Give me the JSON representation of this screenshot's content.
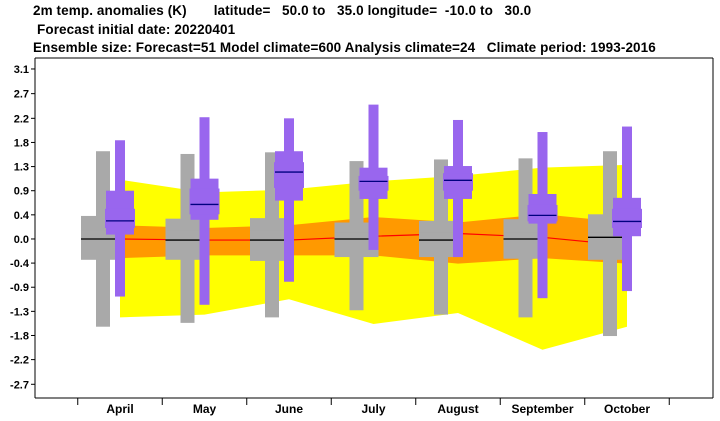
{
  "header": {
    "line1": "2m temp. anomalies (K)       latitude=   50.0 to   35.0 longitude=  -10.0 to   30.0",
    "line2": "Forecast initial date: 20220401",
    "line3": "Ensemble size: Forecast=51 Model climate=600 Analysis climate=24   Climate period: 1993-2016"
  },
  "colors": {
    "climate_outer": "#ffff00",
    "climate_inner": "#ff9900",
    "climate_median": "#ff0000",
    "model_box": "#a9a9a9",
    "forecast_box": "#9966ee",
    "forecast_median": "#000080",
    "model_median": "#000000"
  },
  "chart_data": {
    "type": "box",
    "title": "",
    "xlabel": "",
    "ylabel": "",
    "ylim": [
      -2.9,
      3.3
    ],
    "yticks": [
      "3.1",
      "2.7",
      "2.2",
      "1.8",
      "1.3",
      "0.9",
      "0.4",
      "0.0",
      "-0.4",
      "-0.9",
      "-1.3",
      "-1.8",
      "-2.2",
      "-2.7"
    ],
    "ytick_values": [
      3.1,
      2.65,
      2.2,
      1.76,
      1.32,
      0.88,
      0.44,
      0.0,
      -0.44,
      -0.88,
      -1.32,
      -1.76,
      -2.2,
      -2.65
    ],
    "categories": [
      "April",
      "May",
      "June",
      "July",
      "August",
      "September",
      "October"
    ],
    "analysis_climate": {
      "outer_upper": [
        1.08,
        0.85,
        0.9,
        1.05,
        1.15,
        1.3,
        1.35
      ],
      "outer_lower": [
        -1.43,
        -1.38,
        -1.1,
        -1.55,
        -1.35,
        -2.02,
        -1.6
      ],
      "inner_upper": [
        0.25,
        0.2,
        0.25,
        0.4,
        0.3,
        0.45,
        0.3
      ],
      "inner_lower": [
        -0.35,
        -0.3,
        -0.3,
        -0.3,
        -0.45,
        -0.35,
        -0.45
      ],
      "median": [
        0.0,
        -0.02,
        -0.02,
        0.05,
        0.1,
        0.03,
        -0.12
      ]
    },
    "model_climate": {
      "min": [
        -1.6,
        -1.53,
        -1.43,
        -1.3,
        -1.38,
        -1.43,
        -1.77
      ],
      "p10": [
        -0.38,
        -0.38,
        -0.4,
        -0.33,
        -0.33,
        -0.36,
        -0.38
      ],
      "p25": [
        -0.15,
        -0.15,
        -0.15,
        -0.12,
        -0.12,
        -0.12,
        -0.12
      ],
      "median": [
        0.0,
        -0.02,
        -0.02,
        0.0,
        -0.02,
        0.0,
        0.03
      ],
      "p75": [
        0.15,
        0.15,
        0.15,
        0.12,
        0.12,
        0.12,
        0.12
      ],
      "p90": [
        0.42,
        0.37,
        0.38,
        0.3,
        0.33,
        0.36,
        0.45
      ],
      "max": [
        1.6,
        1.55,
        1.58,
        1.42,
        1.45,
        1.47,
        1.6
      ]
    },
    "forecast": {
      "min": [
        -1.05,
        -1.2,
        -0.78,
        -0.2,
        -0.33,
        -1.08,
        -0.95
      ],
      "p10": [
        0.08,
        0.35,
        0.7,
        0.73,
        0.73,
        0.28,
        0.05
      ],
      "p25": [
        0.2,
        0.45,
        0.93,
        0.88,
        0.88,
        0.32,
        0.2
      ],
      "median": [
        0.33,
        0.63,
        1.22,
        1.05,
        1.07,
        0.43,
        0.32
      ],
      "p75": [
        0.55,
        0.92,
        1.4,
        1.15,
        1.2,
        0.62,
        0.55
      ],
      "p90": [
        0.88,
        1.1,
        1.6,
        1.3,
        1.33,
        0.82,
        0.75
      ],
      "max": [
        1.8,
        2.22,
        2.2,
        2.45,
        2.17,
        1.95,
        2.05
      ]
    }
  }
}
